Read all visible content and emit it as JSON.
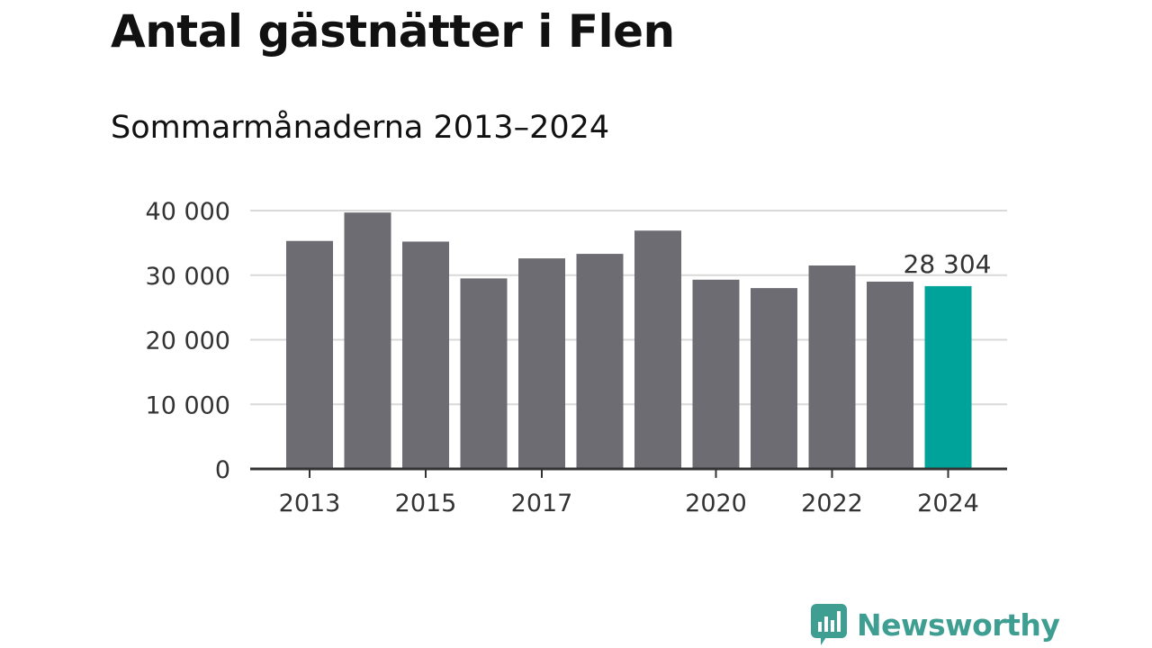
{
  "colors": {
    "bar": "#6d6c72",
    "highlight": "#00a39a",
    "gridline": "#d9d9d9",
    "axis": "#333333",
    "brand": "#3f9e92"
  },
  "brand": {
    "name": "Newsworthy",
    "logo_icon": "bar-chart-speech-bubble-icon"
  },
  "chart_data": {
    "type": "bar",
    "title": "Antal gästnätter i Flen",
    "subtitle": "Sommarmånaderna 2013–2024",
    "xlabel": "",
    "ylabel": "",
    "categories": [
      "2013",
      "2014",
      "2015",
      "2016",
      "2017",
      "2018",
      "2019",
      "2020",
      "2021",
      "2022",
      "2023",
      "2024"
    ],
    "x_tick_labels": [
      "2013",
      "2015",
      "2017",
      "2020",
      "2022",
      "2024"
    ],
    "values": [
      35300,
      39700,
      35200,
      29500,
      32600,
      33300,
      36900,
      29300,
      28000,
      31500,
      29000,
      28304
    ],
    "highlight_index": 11,
    "data_labels": [
      {
        "index": 11,
        "text": "28 304"
      }
    ],
    "ylim": [
      0,
      40000
    ],
    "y_ticks": [
      0,
      10000,
      20000,
      30000,
      40000
    ],
    "y_tick_labels": [
      "0",
      "10 000",
      "20 000",
      "30 000",
      "40 000"
    ],
    "grid": true,
    "legend": "none"
  }
}
